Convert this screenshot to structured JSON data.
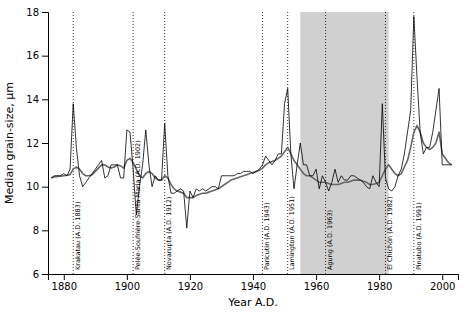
{
  "chart_data": {
    "type": "line",
    "xlabel": "Year A.D.",
    "ylabel": "Median grain-size, μm",
    "xlim": [
      1875,
      2005
    ],
    "ylim": [
      6,
      18
    ],
    "xticks": [
      1880,
      1900,
      1920,
      1940,
      1960,
      1980,
      2000
    ],
    "yticks": [
      6,
      8,
      10,
      12,
      14,
      16,
      18
    ],
    "span": {
      "x": [
        1955,
        1983
      ],
      "color": "#d0d0d0"
    },
    "annotations": [
      {
        "x": 1883,
        "text": "Krakatau (A.D. 1883)"
      },
      {
        "x": 1902,
        "text": "Pelée-Soufrière-Santa Maria (A.D. 1902)"
      },
      {
        "x": 1912,
        "text": "Novarupta (A.D. 1912)"
      },
      {
        "x": 1943,
        "text": "Paricutin (A.D. 1943)"
      },
      {
        "x": 1951,
        "text": "Lamington (A.D. 1951)"
      },
      {
        "x": 1963,
        "text": "Agung (A.D. 1963)"
      },
      {
        "x": 1982,
        "text": "El Chichón (A.D. 1982)"
      },
      {
        "x": 1991,
        "text": "Pinatubo (A.D. 1991)"
      }
    ],
    "x": [
      1876,
      1877,
      1878,
      1879,
      1880,
      1881,
      1882,
      1883,
      1884,
      1885,
      1886,
      1887,
      1888,
      1889,
      1890,
      1891,
      1892,
      1893,
      1894,
      1895,
      1896,
      1897,
      1898,
      1899,
      1900,
      1901,
      1902,
      1903,
      1904,
      1905,
      1906,
      1907,
      1908,
      1909,
      1910,
      1911,
      1912,
      1913,
      1914,
      1915,
      1916,
      1917,
      1918,
      1919,
      1920,
      1921,
      1922,
      1923,
      1924,
      1925,
      1926,
      1927,
      1928,
      1929,
      1930,
      1931,
      1932,
      1933,
      1934,
      1935,
      1936,
      1937,
      1938,
      1939,
      1940,
      1941,
      1942,
      1943,
      1944,
      1945,
      1946,
      1947,
      1948,
      1949,
      1950,
      1951,
      1952,
      1953,
      1954,
      1955,
      1956,
      1957,
      1958,
      1959,
      1960,
      1961,
      1962,
      1963,
      1964,
      1965,
      1966,
      1967,
      1968,
      1969,
      1970,
      1971,
      1972,
      1973,
      1974,
      1975,
      1976,
      1977,
      1978,
      1979,
      1980,
      1981,
      1982,
      1983,
      1984,
      1985,
      1986,
      1987,
      1988,
      1989,
      1990,
      1991,
      1992,
      1993,
      1994,
      1995,
      1996,
      1997,
      1998,
      1999,
      2000,
      2001,
      2002,
      2003
    ],
    "series": [
      {
        "color": "#666666",
        "values": [
          10.4,
          10.45,
          10.47,
          10.48,
          10.5,
          10.52,
          10.55,
          10.8,
          10.9,
          10.8,
          10.6,
          10.5,
          10.5,
          10.55,
          10.7,
          10.85,
          11.0,
          11.0,
          10.9,
          10.85,
          10.9,
          11.0,
          10.95,
          10.85,
          11.2,
          11.3,
          11.1,
          10.8,
          10.5,
          10.4,
          10.6,
          10.7,
          10.6,
          10.4,
          10.3,
          10.3,
          10.5,
          10.4,
          10.1,
          9.9,
          9.8,
          9.75,
          9.7,
          9.5,
          9.5,
          9.5,
          9.6,
          9.65,
          9.7,
          9.7,
          9.75,
          9.8,
          9.85,
          9.9,
          10.0,
          10.1,
          10.2,
          10.3,
          10.35,
          10.4,
          10.45,
          10.5,
          10.55,
          10.6,
          10.65,
          10.7,
          10.75,
          10.85,
          11.0,
          11.1,
          11.15,
          11.2,
          11.3,
          11.4,
          11.6,
          11.8,
          11.5,
          11.2,
          11.0,
          10.8,
          10.6,
          10.5,
          10.5,
          10.4,
          10.3,
          10.2,
          10.2,
          10.2,
          10.15,
          10.1,
          10.1,
          10.1,
          10.15,
          10.2,
          10.2,
          10.25,
          10.3,
          10.3,
          10.3,
          10.25,
          10.2,
          10.1,
          10.1,
          10.15,
          10.2,
          10.5,
          10.8,
          11.0,
          10.8,
          10.6,
          10.5,
          10.6,
          10.9,
          11.2,
          11.8,
          12.5,
          12.8,
          12.5,
          12.0,
          11.8,
          11.7,
          11.8,
          12.0,
          12.5,
          11.5,
          11.3,
          11.1,
          11.0
        ]
      },
      {
        "color": "black",
        "values": [
          10.4,
          10.5,
          10.5,
          10.5,
          10.6,
          10.5,
          10.8,
          13.8,
          11.8,
          10.5,
          10.0,
          10.2,
          10.4,
          10.6,
          10.8,
          11.0,
          11.2,
          10.4,
          10.5,
          11.0,
          11.0,
          11.0,
          10.4,
          10.4,
          12.6,
          12.5,
          10.8,
          8.7,
          10.0,
          11.0,
          12.6,
          11.0,
          10.0,
          10.5,
          10.3,
          10.3,
          12.9,
          10.5,
          9.7,
          9.7,
          9.8,
          9.9,
          9.8,
          8.1,
          9.8,
          9.5,
          9.9,
          9.8,
          9.9,
          9.8,
          9.9,
          10.0,
          10.0,
          9.9,
          10.5,
          10.5,
          10.5,
          10.5,
          10.5,
          10.6,
          10.6,
          10.7,
          10.7,
          10.7,
          10.6,
          10.7,
          10.8,
          11.0,
          11.4,
          11.2,
          11.0,
          11.2,
          11.5,
          11.5,
          13.8,
          14.5,
          11.5,
          9.9,
          11.0,
          12.0,
          11.0,
          11.0,
          10.5,
          10.5,
          10.8,
          9.9,
          10.5,
          10.2,
          9.8,
          10.2,
          10.8,
          10.2,
          10.5,
          10.3,
          10.3,
          10.5,
          10.5,
          10.4,
          10.3,
          10.2,
          10.0,
          9.9,
          10.5,
          10.2,
          10.0,
          13.8,
          10.4,
          9.9,
          9.8,
          10.0,
          10.5,
          10.8,
          11.5,
          12.5,
          13.5,
          17.8,
          15.0,
          12.5,
          11.5,
          11.8,
          11.8,
          12.5,
          13.5,
          14.5,
          11.0,
          11.0,
          11.0,
          11.0
        ]
      }
    ]
  }
}
